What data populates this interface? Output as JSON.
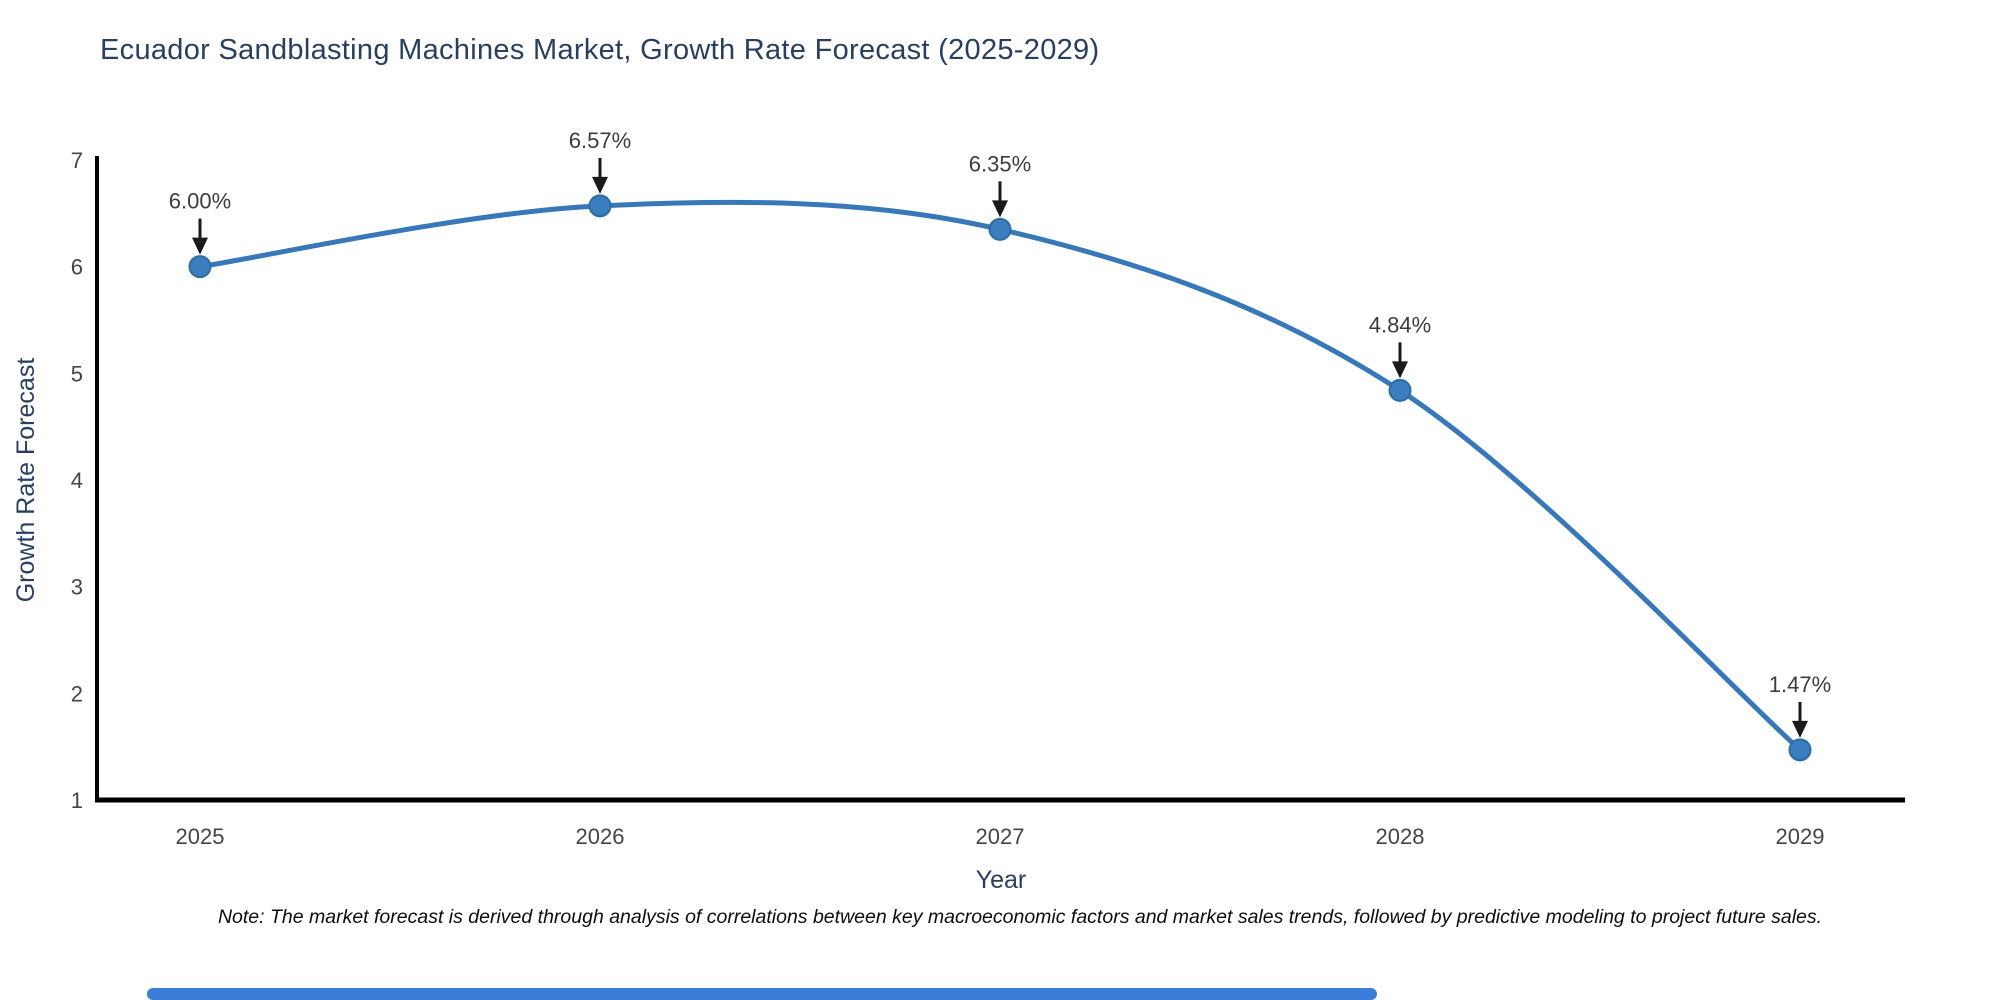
{
  "title": "Ecuador Sandblasting Machines Market, Growth Rate Forecast (2025-2029)",
  "note": "Note: The market forecast is derived through analysis of correlations between key macroeconomic factors and market sales trends, followed by predictive modeling to project future sales.",
  "colors": {
    "line": "#3878b8",
    "marker_fill": "#3a7ebf",
    "marker_edge": "#2c6da0",
    "axis": "#000000",
    "tick_label": "#444444",
    "annotation_text": "#3d3d3d",
    "arrow": "#1a1a1a",
    "title_text": "#2a3f5f",
    "axis_title_text": "#2a3f5f",
    "note_text": "#0d0d0d",
    "footer_bar": "#3b7dd8"
  },
  "chart_data": {
    "type": "line",
    "title": "Ecuador Sandblasting Machines Market, Growth Rate Forecast (2025-2029)",
    "xlabel": "Year",
    "ylabel": "Growth Rate Forecast",
    "x": [
      2025,
      2026,
      2027,
      2028,
      2029
    ],
    "y": [
      6.0,
      6.57,
      6.35,
      4.84,
      1.47
    ],
    "point_labels": [
      "6.00%",
      "6.57%",
      "6.35%",
      "4.84%",
      "1.47%"
    ],
    "yticks": [
      1,
      2,
      3,
      4,
      5,
      6,
      7
    ],
    "ylim": [
      1,
      7
    ],
    "line_shape": "spline",
    "markers": true,
    "annotations": "arrow-down-to-point",
    "grid": false,
    "legend": false
  }
}
